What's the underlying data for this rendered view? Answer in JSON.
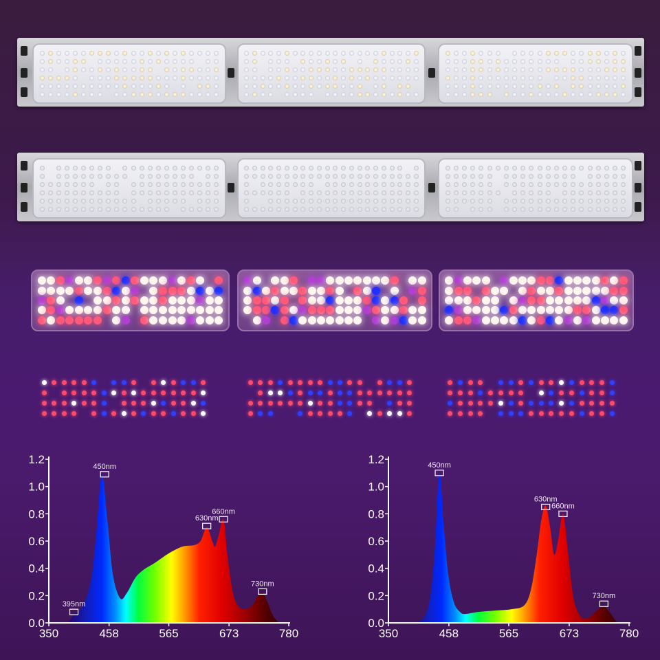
{
  "products": {
    "rows": [
      {
        "kind": "fixture-white-full-spectrum",
        "modules": 3
      },
      {
        "kind": "fixture-white",
        "modules": 3
      },
      {
        "kind": "module-full-spectrum-lit",
        "modules": 3
      },
      {
        "kind": "module-red-blue-lit",
        "modules": 3
      }
    ]
  },
  "colors": {
    "background": "#471d6a",
    "axis": "#ffffff",
    "text": "#ffffff",
    "marker": "#ffffff"
  },
  "chart_data": [
    {
      "type": "area",
      "title": "",
      "xlabel": "",
      "ylabel": "",
      "xlim": [
        350,
        780
      ],
      "ylim": [
        0,
        1.2
      ],
      "xticks": [
        "350",
        "458",
        "565",
        "673",
        "780"
      ],
      "yticks": [
        "0.0",
        "0.2",
        "0.4",
        "0.6",
        "0.8",
        "1.0",
        "1.2"
      ],
      "grid": false,
      "fill": "wavelength-spectrum-gradient",
      "x": [
        385,
        395,
        410,
        425,
        435,
        445,
        455,
        465,
        478,
        490,
        505,
        520,
        540,
        565,
        590,
        610,
        622,
        633,
        643,
        648,
        655,
        663,
        670,
        680,
        690,
        702,
        715,
        725,
        733,
        742,
        752,
        763
      ],
      "y": [
        0,
        0.06,
        0.12,
        0.3,
        0.65,
        1.08,
        0.75,
        0.35,
        0.18,
        0.22,
        0.33,
        0.39,
        0.44,
        0.51,
        0.56,
        0.57,
        0.6,
        0.7,
        0.6,
        0.56,
        0.65,
        0.76,
        0.5,
        0.22,
        0.12,
        0.1,
        0.13,
        0.2,
        0.22,
        0.15,
        0.05,
        0
      ],
      "annotations": [
        {
          "label": "395nm",
          "x": 395,
          "y": 0.08
        },
        {
          "label": "450nm",
          "x": 450,
          "y": 1.09
        },
        {
          "label": "630nm",
          "x": 633,
          "y": 0.71
        },
        {
          "label": "660nm",
          "x": 663,
          "y": 0.76
        },
        {
          "label": "730nm",
          "x": 733,
          "y": 0.23
        }
      ]
    },
    {
      "type": "area",
      "title": "",
      "xlabel": "",
      "ylabel": "",
      "xlim": [
        350,
        780
      ],
      "ylim": [
        0,
        1.2
      ],
      "xticks": [
        "350",
        "458",
        "565",
        "673",
        "780"
      ],
      "yticks": [
        "0.0",
        "0.2",
        "0.4",
        "0.6",
        "0.8",
        "1.0",
        "1.2"
      ],
      "grid": false,
      "fill": "wavelength-spectrum-gradient",
      "x": [
        400,
        415,
        425,
        433,
        441,
        449,
        457,
        467,
        478,
        487,
        510,
        540,
        570,
        593,
        605,
        615,
        623,
        631,
        639,
        646,
        653,
        662,
        670,
        680,
        690,
        700,
        712,
        725,
        735,
        745,
        755,
        762
      ],
      "y": [
        0,
        0.05,
        0.2,
        0.55,
        1.1,
        0.7,
        0.35,
        0.15,
        0.08,
        0.065,
        0.08,
        0.09,
        0.1,
        0.13,
        0.25,
        0.5,
        0.75,
        0.86,
        0.7,
        0.5,
        0.6,
        0.8,
        0.55,
        0.2,
        0.07,
        0.03,
        0.05,
        0.1,
        0.12,
        0.08,
        0.02,
        0
      ],
      "annotations": [
        {
          "label": "450nm",
          "x": 441,
          "y": 1.1
        },
        {
          "label": "630nm",
          "x": 631,
          "y": 0.85
        },
        {
          "label": "660nm",
          "x": 662,
          "y": 0.8
        },
        {
          "label": "730nm",
          "x": 735,
          "y": 0.14
        }
      ]
    }
  ]
}
